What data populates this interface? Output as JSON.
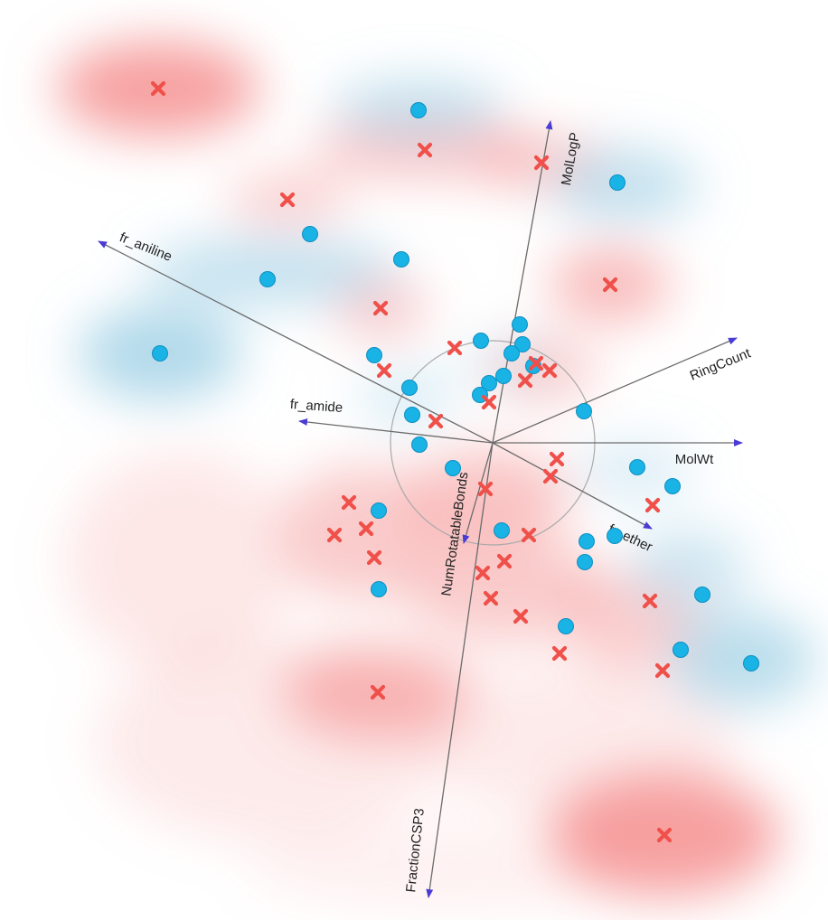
{
  "chart_data": {
    "type": "scatter",
    "title": "",
    "xlabel": "",
    "ylabel": "",
    "xlim": [
      0,
      916
    ],
    "ylim": [
      0,
      1018
    ],
    "y_direction": "down",
    "grid": false,
    "legend": "none",
    "background": "red/blue density field",
    "colors": {
      "circle": "#19b3e6",
      "circle_stroke": "#0f8fc0",
      "cross": "#f0504a",
      "axis": "#6b6b6b",
      "arrowhead": "#4a3bd6",
      "reference_circle": "#aaaaaa",
      "density_red": "#f58c8c",
      "density_blue": "#8cc6e0"
    },
    "origin": [
      545,
      490
    ],
    "reference_circle_radius": 113,
    "axes": [
      {
        "name": "MolLogP",
        "end": [
          609,
          134
        ]
      },
      {
        "name": "RingCount",
        "end": [
          815,
          374
        ]
      },
      {
        "name": "MolWt",
        "end": [
          821,
          490
        ]
      },
      {
        "name": "fr_ether",
        "end": [
          721,
          585
        ]
      },
      {
        "name": "NumRotatableBonds",
        "end": [
          513,
          601
        ]
      },
      {
        "name": "FractionCSP3",
        "end": [
          474,
          993
        ]
      },
      {
        "name": "fr_amide",
        "end": [
          331,
          466
        ]
      },
      {
        "name": "fr_aniline",
        "end": [
          109,
          267
        ]
      }
    ],
    "axis_labels": [
      {
        "text": "MolLogP",
        "anchor": [
          632,
          176
        ],
        "rotate": -80
      },
      {
        "text": "RingCount",
        "anchor": [
          797,
          404
        ],
        "rotate": -22
      },
      {
        "text": "MolWt",
        "anchor": [
          768,
          509
        ],
        "rotate": 0
      },
      {
        "text": "fr_ether",
        "anchor": [
          697,
          596
        ],
        "rotate": 25
      },
      {
        "text": "NumRotatableBonds",
        "anchor": [
          504,
          591
        ],
        "rotate": -82
      },
      {
        "text": "FractionCSP3",
        "anchor": [
          460,
          941
        ],
        "rotate": -84
      },
      {
        "text": "fr_amide",
        "anchor": [
          350,
          450
        ],
        "rotate": 4
      },
      {
        "text": "fr_aniline",
        "anchor": [
          161,
          274
        ],
        "rotate": 22
      }
    ],
    "series": [
      {
        "marker": "circle",
        "points": [
          [
            463,
            122
          ],
          [
            683,
            202
          ],
          [
            343,
            259
          ],
          [
            444,
            287
          ],
          [
            296,
            309
          ],
          [
            177,
            391
          ],
          [
            414,
            393
          ],
          [
            575,
            359
          ],
          [
            532,
            377
          ],
          [
            578,
            381
          ],
          [
            566,
            391
          ],
          [
            590,
            405
          ],
          [
            557,
            416
          ],
          [
            541,
            424
          ],
          [
            531,
            437
          ],
          [
            453,
            429
          ],
          [
            456,
            459
          ],
          [
            646,
            455
          ],
          [
            464,
            492
          ],
          [
            501,
            518
          ],
          [
            705,
            517
          ],
          [
            744,
            538
          ],
          [
            419,
            565
          ],
          [
            555,
            587
          ],
          [
            680,
            593
          ],
          [
            649,
            599
          ],
          [
            647,
            622
          ],
          [
            419,
            652
          ],
          [
            777,
            658
          ],
          [
            626,
            693
          ],
          [
            753,
            719
          ],
          [
            831,
            734
          ]
        ]
      },
      {
        "marker": "cross",
        "points": [
          [
            175,
            98
          ],
          [
            470,
            166
          ],
          [
            599,
            180
          ],
          [
            318,
            221
          ],
          [
            675,
            315
          ],
          [
            421,
            341
          ],
          [
            503,
            385
          ],
          [
            425,
            410
          ],
          [
            593,
            402
          ],
          [
            608,
            410
          ],
          [
            581,
            421
          ],
          [
            541,
            445
          ],
          [
            482,
            466
          ],
          [
            616,
            508
          ],
          [
            609,
            527
          ],
          [
            537,
            541
          ],
          [
            722,
            559
          ],
          [
            386,
            556
          ],
          [
            405,
            585
          ],
          [
            370,
            592
          ],
          [
            585,
            592
          ],
          [
            414,
            617
          ],
          [
            558,
            621
          ],
          [
            534,
            634
          ],
          [
            543,
            662
          ],
          [
            719,
            665
          ],
          [
            576,
            682
          ],
          [
            619,
            723
          ],
          [
            733,
            742
          ],
          [
            418,
            766
          ],
          [
            735,
            924
          ]
        ]
      }
    ],
    "density": {
      "red": [
        [
          175,
          98,
          150,
          70,
          0.55
        ],
        [
          470,
          166,
          170,
          40,
          0.35
        ],
        [
          600,
          180,
          100,
          40,
          0.3
        ],
        [
          318,
          221,
          90,
          35,
          0.3
        ],
        [
          675,
          315,
          90,
          55,
          0.4
        ],
        [
          421,
          341,
          70,
          45,
          0.3
        ],
        [
          600,
          410,
          80,
          45,
          0.3
        ],
        [
          540,
          550,
          120,
          70,
          0.35
        ],
        [
          400,
          590,
          120,
          100,
          0.3
        ],
        [
          560,
          650,
          150,
          80,
          0.3
        ],
        [
          700,
          690,
          100,
          70,
          0.28
        ],
        [
          418,
          766,
          140,
          70,
          0.4
        ],
        [
          735,
          924,
          170,
          90,
          0.55
        ],
        [
          300,
          820,
          260,
          150,
          0.12
        ],
        [
          640,
          820,
          230,
          110,
          0.12
        ],
        [
          200,
          620,
          170,
          160,
          0.14
        ],
        [
          500,
          960,
          300,
          60,
          0.08
        ]
      ],
      "blue": [
        [
          463,
          122,
          130,
          45,
          0.35
        ],
        [
          690,
          205,
          110,
          55,
          0.35
        ],
        [
          177,
          391,
          120,
          70,
          0.45
        ],
        [
          300,
          300,
          190,
          50,
          0.35
        ],
        [
          820,
          730,
          110,
          70,
          0.4
        ],
        [
          760,
          630,
          90,
          60,
          0.28
        ],
        [
          700,
          520,
          90,
          40,
          0.22
        ],
        [
          450,
          440,
          70,
          50,
          0.2
        ],
        [
          560,
          400,
          70,
          40,
          0.15
        ]
      ]
    }
  }
}
